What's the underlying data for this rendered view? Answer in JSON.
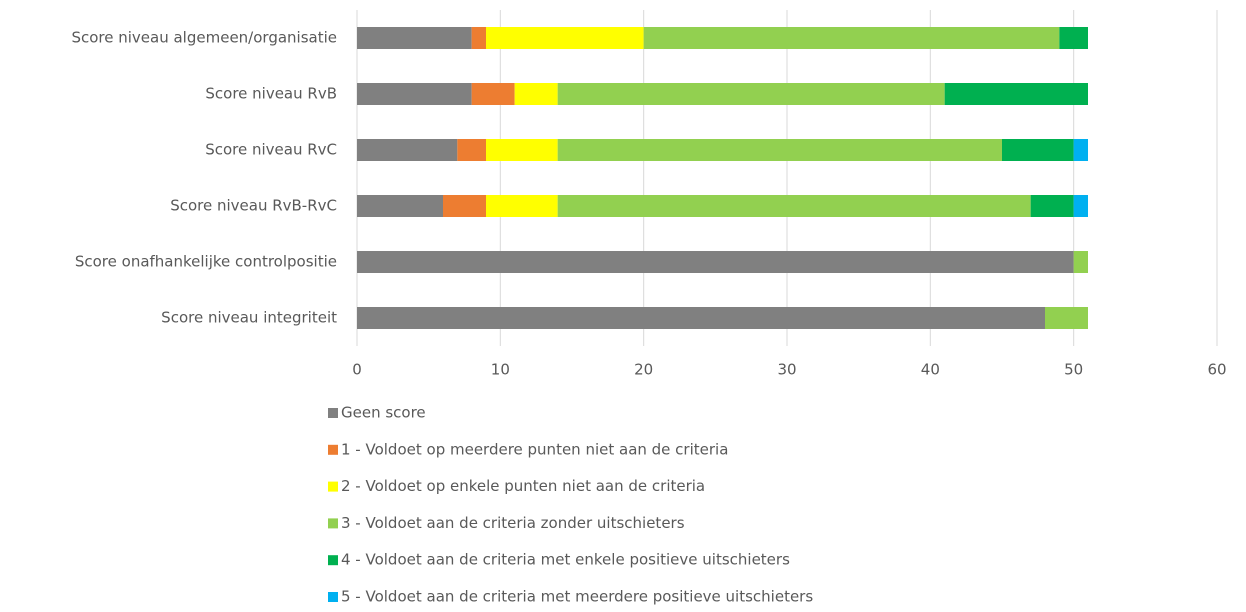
{
  "chart_data": {
    "type": "stacked_barh",
    "categories": [
      "Score niveau algemeen/organisatie",
      "Score niveau RvB",
      "Score niveau RvC",
      "Score niveau RvB-RvC",
      "Score onafhankelijke controlpositie",
      "Score niveau integriteit"
    ],
    "series": [
      {
        "name": "Geen score",
        "color": "#808080",
        "values": [
          8,
          8,
          7,
          6,
          50,
          48
        ]
      },
      {
        "name": "1 - Voldoet op meerdere punten niet aan de criteria",
        "color": "#ed7d31",
        "values": [
          1,
          3,
          2,
          3,
          0,
          0
        ]
      },
      {
        "name": "2 - Voldoet op enkele punten niet aan de criteria",
        "color": "#ffff00",
        "values": [
          11,
          3,
          5,
          5,
          0,
          0
        ]
      },
      {
        "name": "3 - Voldoet aan de criteria zonder uitschieters",
        "color": "#92d050",
        "values": [
          29,
          27,
          31,
          33,
          1,
          3
        ]
      },
      {
        "name": "4 - Voldoet aan de criteria met enkele positieve uitschieters",
        "color": "#00b050",
        "values": [
          2,
          10,
          5,
          3,
          0,
          0
        ]
      },
      {
        "name": "5 - Voldoet aan de criteria met meerdere positieve uitschieters",
        "color": "#00b0f0",
        "values": [
          0,
          0,
          1,
          1,
          0,
          0
        ]
      }
    ],
    "xlim": [
      0,
      60
    ],
    "xticks": [
      0,
      10,
      20,
      30,
      40,
      50,
      60
    ],
    "grid": true,
    "legend": "bottom"
  }
}
